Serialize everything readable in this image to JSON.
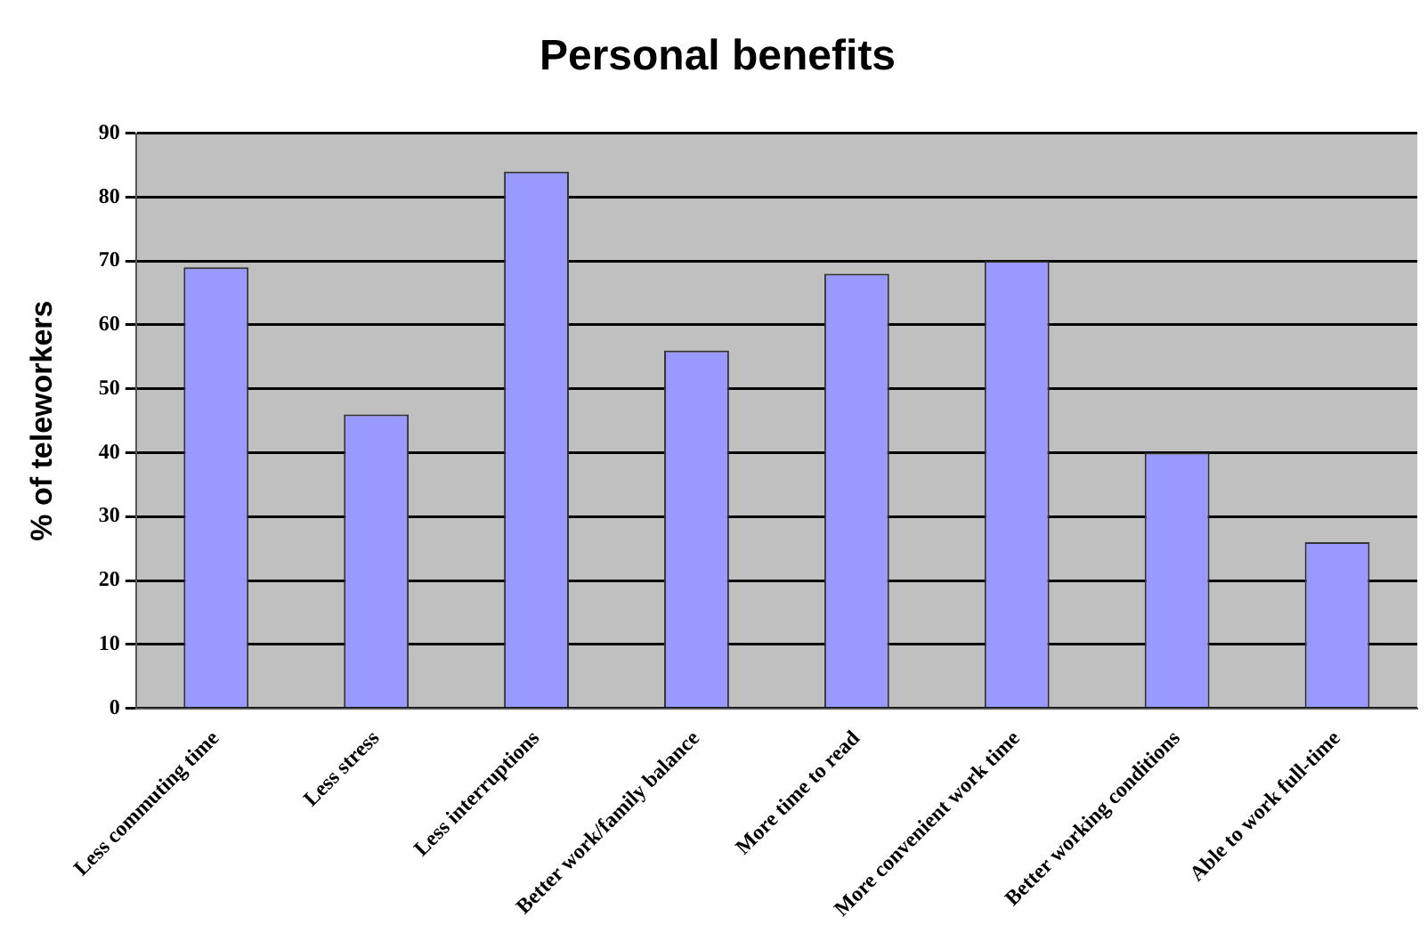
{
  "chart_data": {
    "type": "bar",
    "title": "Personal benefits",
    "ylabel": "% of teleworkers",
    "categories": [
      "Less commuting time",
      "Less stress",
      "Less interruptions",
      "Better work/family balance",
      "More time to read",
      "More convenient work time",
      "Better working conditions",
      "Able to work full-time"
    ],
    "values": [
      69,
      46,
      84,
      56,
      68,
      70,
      40,
      26
    ],
    "color": "#9999ff",
    "ylim": [
      0,
      90
    ],
    "yticks": [
      0,
      10,
      20,
      30,
      40,
      50,
      60,
      70,
      80,
      90
    ],
    "grid": "y",
    "legend": false
  }
}
